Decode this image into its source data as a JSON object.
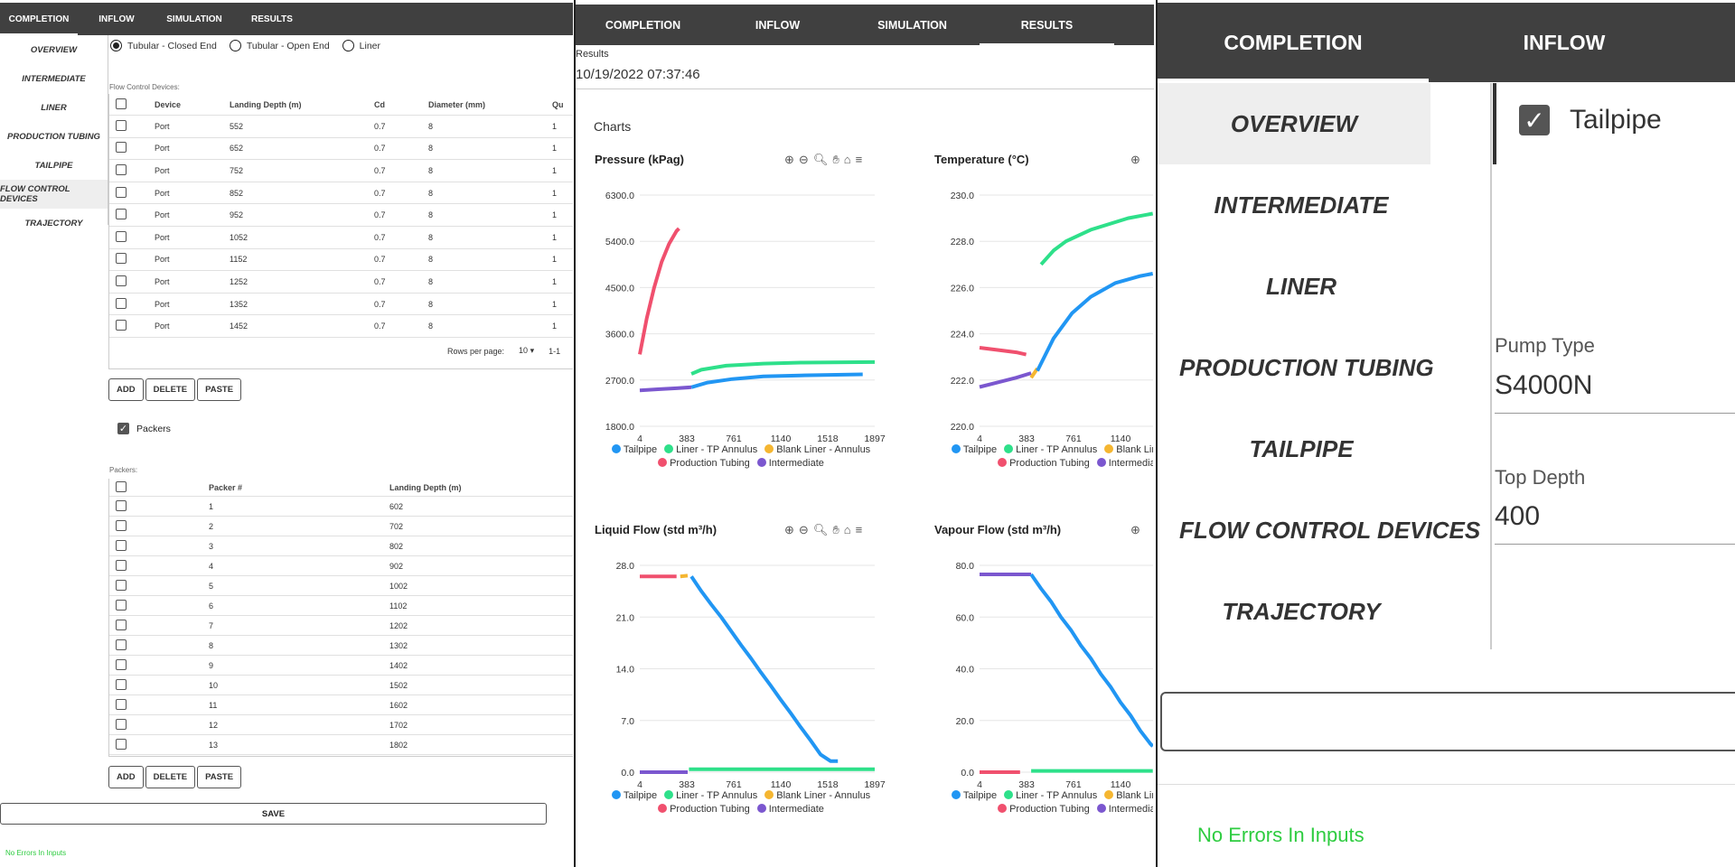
{
  "tabs": [
    "COMPLETION",
    "INFLOW",
    "SIMULATION",
    "RESULTS"
  ],
  "completion": {
    "sidebar": [
      "OVERVIEW",
      "INTERMEDIATE",
      "LINER",
      "PRODUCTION TUBING",
      "TAILPIPE",
      "FLOW CONTROL DEVICES",
      "TRAJECTORY"
    ],
    "selected_sidebar": "FLOW CONTROL DEVICES",
    "radios": [
      {
        "label": "Tubular - Closed End",
        "checked": true
      },
      {
        "label": "Tubular - Open End",
        "checked": false
      },
      {
        "label": "Liner",
        "checked": false
      }
    ],
    "fcd_label": "Flow Control Devices:",
    "fcd_headers": [
      "Device",
      "Landing Depth (m)",
      "Cd",
      "Diameter (mm)",
      "Qu"
    ],
    "fcd_rows": [
      [
        "Port",
        "552",
        "0.7",
        "8",
        "1"
      ],
      [
        "Port",
        "652",
        "0.7",
        "8",
        "1"
      ],
      [
        "Port",
        "752",
        "0.7",
        "8",
        "1"
      ],
      [
        "Port",
        "852",
        "0.7",
        "8",
        "1"
      ],
      [
        "Port",
        "952",
        "0.7",
        "8",
        "1"
      ],
      [
        "Port",
        "1052",
        "0.7",
        "8",
        "1"
      ],
      [
        "Port",
        "1152",
        "0.7",
        "8",
        "1"
      ],
      [
        "Port",
        "1252",
        "0.7",
        "8",
        "1"
      ],
      [
        "Port",
        "1352",
        "0.7",
        "8",
        "1"
      ],
      [
        "Port",
        "1452",
        "0.7",
        "8",
        "1"
      ]
    ],
    "rows_per_page_label": "Rows per page:",
    "rows_per_page": "10",
    "pagination": "1-1",
    "buttons": [
      "ADD",
      "DELETE",
      "PASTE"
    ],
    "packers_checkbox": "Packers",
    "packers_label": "Packers:",
    "packer_headers": [
      "Packer #",
      "Landing Depth (m)"
    ],
    "packer_rows": [
      [
        "1",
        "602"
      ],
      [
        "2",
        "702"
      ],
      [
        "3",
        "802"
      ],
      [
        "4",
        "902"
      ],
      [
        "5",
        "1002"
      ],
      [
        "6",
        "1102"
      ],
      [
        "7",
        "1202"
      ],
      [
        "8",
        "1302"
      ],
      [
        "9",
        "1402"
      ],
      [
        "10",
        "1502"
      ],
      [
        "11",
        "1602"
      ],
      [
        "12",
        "1702"
      ],
      [
        "13",
        "1802"
      ]
    ],
    "save_label": "SAVE",
    "status": "No Errors In Inputs"
  },
  "results": {
    "header_label": "Results",
    "timestamp": "10/19/2022 07:37:46",
    "charts_label": "Charts",
    "legend": [
      {
        "name": "Tailpipe",
        "color": "#2196f3"
      },
      {
        "name": "Liner - TP Annulus",
        "color": "#2ee08a"
      },
      {
        "name": "Blank Liner - Annulus",
        "color": "#f5b631"
      },
      {
        "name": "Production Tubing",
        "color": "#f0506e"
      },
      {
        "name": "Intermediate",
        "color": "#7b57cf"
      }
    ]
  },
  "chart_data": [
    {
      "type": "line",
      "title": "Pressure (kPag)",
      "x_ticks": [
        "4",
        "383",
        "761",
        "1140",
        "1518",
        "1897"
      ],
      "xlim": [
        4,
        1897
      ],
      "y_ticks": [
        "1800.0",
        "2700.0",
        "3600.0",
        "4500.0",
        "5400.0",
        "6300.0"
      ],
      "ylim": [
        1800,
        6300
      ],
      "series": [
        {
          "name": "Production Tubing",
          "color": "#f0506e",
          "points": [
            [
              4,
              3200
            ],
            [
              60,
              3900
            ],
            [
              120,
              4500
            ],
            [
              180,
              5000
            ],
            [
              240,
              5350
            ],
            [
              300,
              5600
            ],
            [
              320,
              5650
            ]
          ]
        },
        {
          "name": "Intermediate",
          "color": "#7b57cf",
          "points": [
            [
              4,
              2500
            ],
            [
              150,
              2520
            ],
            [
              300,
              2540
            ],
            [
              420,
              2560
            ]
          ]
        },
        {
          "name": "Liner - TP Annulus",
          "color": "#2ee08a",
          "points": [
            [
              420,
              2820
            ],
            [
              500,
              2900
            ],
            [
              700,
              2980
            ],
            [
              1000,
              3020
            ],
            [
              1300,
              3040
            ],
            [
              1897,
              3050
            ]
          ]
        },
        {
          "name": "Tailpipe",
          "color": "#2196f3",
          "points": [
            [
              420,
              2560
            ],
            [
              550,
              2650
            ],
            [
              750,
              2720
            ],
            [
              1000,
              2770
            ],
            [
              1300,
              2790
            ],
            [
              1800,
              2810
            ]
          ]
        }
      ]
    },
    {
      "type": "line",
      "title": "Temperature (°C)",
      "x_ticks": [
        "4",
        "383",
        "761",
        "1140"
      ],
      "xlim": [
        4,
        1897
      ],
      "y_ticks": [
        "220.0",
        "222.0",
        "224.0",
        "226.0",
        "228.0",
        "230.0"
      ],
      "ylim": [
        220,
        230
      ],
      "series": [
        {
          "name": "Production Tubing",
          "color": "#f0506e",
          "points": [
            [
              4,
              223.4
            ],
            [
              150,
              223.3
            ],
            [
              300,
              223.2
            ],
            [
              380,
              223.1
            ]
          ]
        },
        {
          "name": "Intermediate",
          "color": "#7b57cf",
          "points": [
            [
              4,
              221.7
            ],
            [
              150,
              221.9
            ],
            [
              300,
              222.1
            ],
            [
              420,
              222.3
            ]
          ]
        },
        {
          "name": "Blank Liner - Annulus",
          "color": "#f5b631",
          "points": [
            [
              420,
              222.1
            ],
            [
              470,
              222.5
            ]
          ]
        },
        {
          "name": "Liner - TP Annulus",
          "color": "#2ee08a",
          "points": [
            [
              500,
              227.0
            ],
            [
              600,
              227.6
            ],
            [
              700,
              228.0
            ],
            [
              900,
              228.5
            ],
            [
              1200,
              229.0
            ],
            [
              1400,
              229.2
            ]
          ]
        },
        {
          "name": "Tailpipe",
          "color": "#2196f3",
          "points": [
            [
              470,
              222.4
            ],
            [
              600,
              223.8
            ],
            [
              750,
              224.9
            ],
            [
              900,
              225.6
            ],
            [
              1100,
              226.2
            ],
            [
              1300,
              226.5
            ],
            [
              1400,
              226.6
            ]
          ]
        }
      ]
    },
    {
      "type": "line",
      "title": "Liquid Flow (std m³/h)",
      "x_ticks": [
        "4",
        "383",
        "761",
        "1140",
        "1518",
        "1897"
      ],
      "xlim": [
        4,
        1897
      ],
      "y_ticks": [
        "0.0",
        "7.0",
        "14.0",
        "21.0",
        "28.0"
      ],
      "ylim": [
        0,
        28
      ],
      "series": [
        {
          "name": "Production Tubing",
          "color": "#f0506e",
          "points": [
            [
              4,
              26.5
            ],
            [
              300,
              26.5
            ]
          ]
        },
        {
          "name": "Blank Liner - Annulus",
          "color": "#f5b631",
          "points": [
            [
              330,
              26.5
            ],
            [
              390,
              26.6
            ]
          ]
        },
        {
          "name": "Intermediate",
          "color": "#7b57cf",
          "points": [
            [
              4,
              0
            ],
            [
              390,
              0
            ]
          ]
        },
        {
          "name": "Liner - TP Annulus",
          "color": "#2ee08a",
          "points": [
            [
              400,
              0.4
            ],
            [
              1897,
              0.4
            ]
          ]
        },
        {
          "name": "Tailpipe",
          "color": "#2196f3",
          "points": [
            [
              420,
              26.5
            ],
            [
              500,
              24.5
            ],
            [
              580,
              22.7
            ],
            [
              660,
              21.0
            ],
            [
              740,
              19.1
            ],
            [
              820,
              17.2
            ],
            [
              900,
              15.4
            ],
            [
              980,
              13.5
            ],
            [
              1060,
              11.7
            ],
            [
              1140,
              9.8
            ],
            [
              1220,
              8.0
            ],
            [
              1300,
              6.1
            ],
            [
              1380,
              4.3
            ],
            [
              1460,
              2.4
            ],
            [
              1540,
              1.5
            ],
            [
              1600,
              1.5
            ]
          ]
        }
      ]
    },
    {
      "type": "line",
      "title": "Vapour Flow (std m³/h)",
      "x_ticks": [
        "4",
        "383",
        "761",
        "1140"
      ],
      "xlim": [
        4,
        1897
      ],
      "y_ticks": [
        "0.0",
        "20.0",
        "40.0",
        "60.0",
        "80.0"
      ],
      "ylim": [
        0,
        80
      ],
      "series": [
        {
          "name": "Intermediate",
          "color": "#7b57cf",
          "points": [
            [
              4,
              76.5
            ],
            [
              420,
              76.5
            ]
          ]
        },
        {
          "name": "Production Tubing",
          "color": "#f0506e",
          "points": [
            [
              4,
              0
            ],
            [
              330,
              0
            ]
          ]
        },
        {
          "name": "Liner - TP Annulus",
          "color": "#2ee08a",
          "points": [
            [
              420,
              0.5
            ],
            [
              1400,
              0.5
            ]
          ]
        },
        {
          "name": "Tailpipe",
          "color": "#2196f3",
          "points": [
            [
              420,
              76.5
            ],
            [
              500,
              71
            ],
            [
              580,
              66
            ],
            [
              660,
              60
            ],
            [
              740,
              55
            ],
            [
              820,
              49
            ],
            [
              900,
              44
            ],
            [
              980,
              38
            ],
            [
              1060,
              33
            ],
            [
              1140,
              27
            ],
            [
              1220,
              22
            ],
            [
              1300,
              16
            ],
            [
              1380,
              11
            ],
            [
              1400,
              10
            ]
          ]
        }
      ]
    }
  ],
  "detail": {
    "sidebar": [
      "OVERVIEW",
      "INTERMEDIATE",
      "LINER",
      "PRODUCTION TUBING",
      "TAILPIPE",
      "FLOW CONTROL DEVICES",
      "TRAJECTORY"
    ],
    "tailpipe_checkbox": "Tailpipe",
    "pump_type_label": "Pump Type",
    "pump_type_value": "S4000N",
    "top_depth_label": "Top Depth",
    "top_depth_value": "400",
    "status": "No Errors In Inputs"
  }
}
